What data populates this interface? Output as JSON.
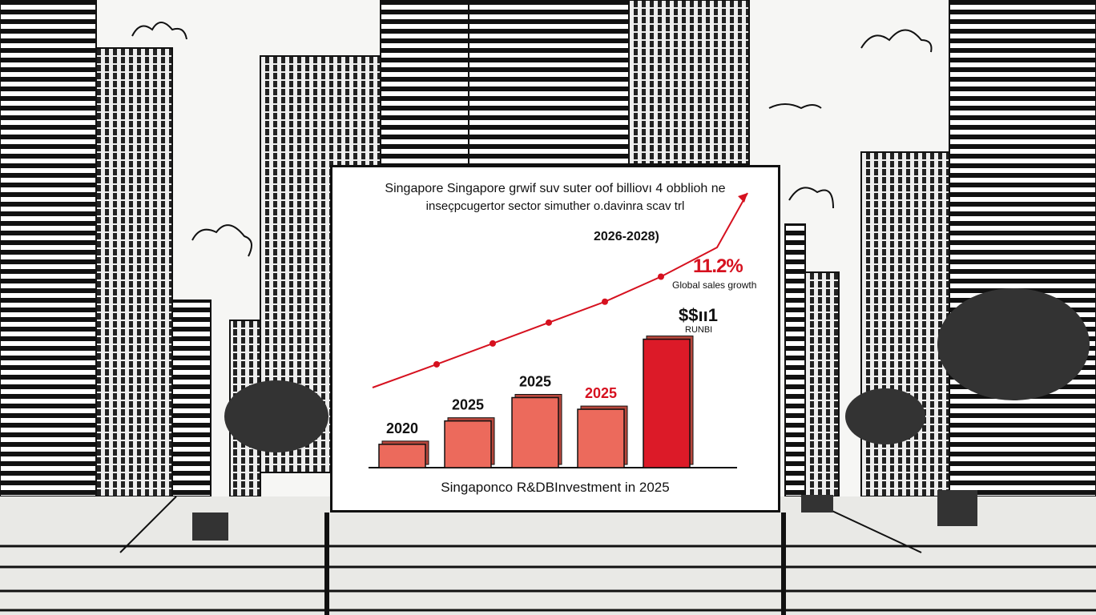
{
  "billboard": {
    "title_line1": "Singapore Singapore grwif suv suter oof billiovı 4 obblioh ne",
    "title_line2": "inseçpcugertor sector simuther o.davinra scav trl",
    "period_label": "2026-2028)",
    "growth_pct": "11.2%",
    "growth_label": "Global sales growth",
    "amount_label": "$$ıı1",
    "amount_unit": "RUNBI"
  },
  "chart_data": {
    "type": "bar",
    "categories": [
      "2020",
      "2025",
      "2025",
      "2025",
      ""
    ],
    "values": [
      1,
      2,
      3,
      2.5,
      5.5
    ],
    "xlabel": "Singaponco R&DBInvestment in 2025",
    "highlight_index": 4,
    "highlight_label_index": 3,
    "ylim": [
      0,
      6
    ],
    "trend_points": [
      1,
      2,
      3,
      4,
      5.2,
      6.6
    ],
    "colors": {
      "bar": "#ec6a5c",
      "bar_highlight": "#dc1a28",
      "trend": "#d6111f",
      "label_highlight": "#d6111f"
    }
  }
}
